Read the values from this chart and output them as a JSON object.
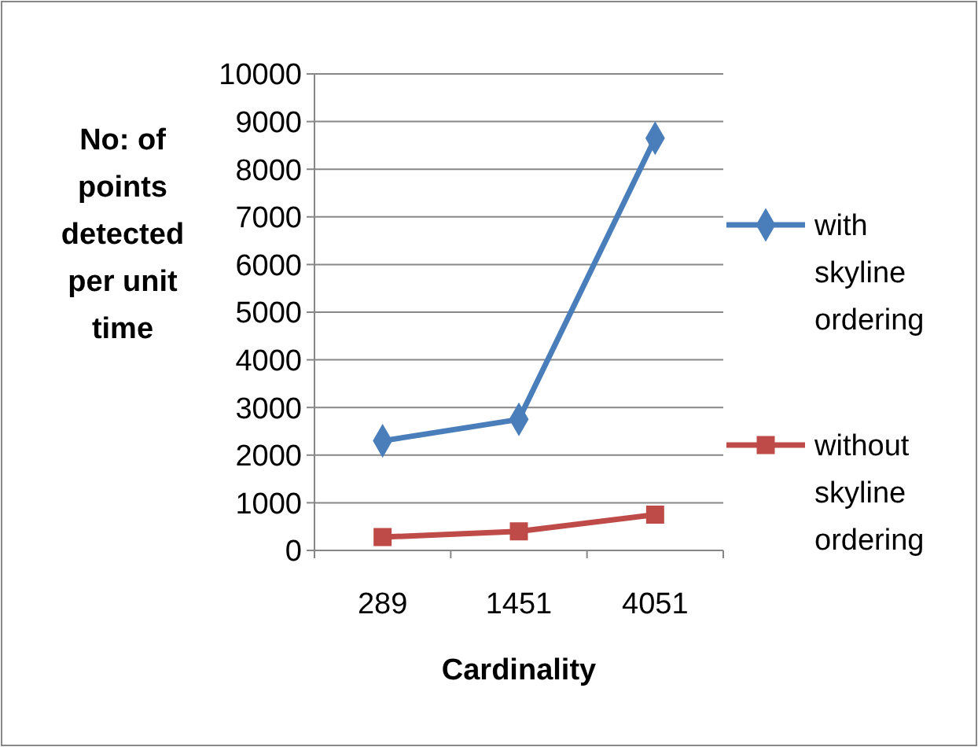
{
  "chart_data": {
    "type": "line",
    "categories": [
      "289",
      "1451",
      "4051"
    ],
    "series": [
      {
        "name": "with skyline ordering",
        "color": "#4a7ebb",
        "marker": "diamond",
        "values": [
          2300,
          2750,
          8650
        ]
      },
      {
        "name": "without skyline ordering",
        "color": "#be4b48",
        "marker": "square",
        "values": [
          280,
          400,
          750
        ]
      }
    ],
    "xlabel": "Cardinality",
    "ylabel": "No: of points detected per unit time",
    "ylim": [
      0,
      10000
    ],
    "yticks": [
      0,
      1000,
      2000,
      3000,
      4000,
      5000,
      6000,
      7000,
      8000,
      9000,
      10000
    ],
    "grid": "y",
    "legend": "right"
  }
}
